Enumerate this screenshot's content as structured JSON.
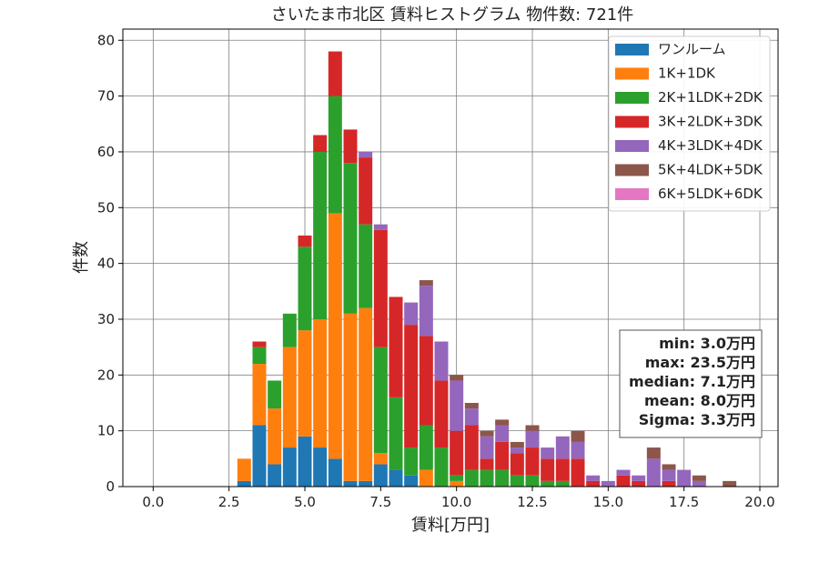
{
  "chart_data": {
    "type": "bar",
    "stacked": true,
    "title": "さいたま市北区 賃料ヒストグラム 物件数: 721件",
    "xlabel": "賃料[万円]",
    "ylabel": "件数",
    "xlim": [
      -1.0,
      20.6
    ],
    "ylim": [
      0,
      82
    ],
    "xticks": [
      0.0,
      2.5,
      5.0,
      7.5,
      10.0,
      12.5,
      15.0,
      17.5,
      20.0
    ],
    "xtick_labels": [
      "0.0",
      "2.5",
      "5.0",
      "7.5",
      "10.0",
      "12.5",
      "15.0",
      "17.5",
      "20.0"
    ],
    "yticks": [
      0,
      10,
      20,
      30,
      40,
      50,
      60,
      70,
      80
    ],
    "ytick_labels": [
      "0",
      "10",
      "20",
      "30",
      "40",
      "50",
      "60",
      "70",
      "80"
    ],
    "grid": true,
    "legend_position": "top-right",
    "bin_width": 0.5,
    "bin_starts": [
      3.0,
      3.5,
      4.0,
      4.5,
      5.0,
      5.5,
      6.0,
      6.5,
      7.0,
      7.5,
      8.0,
      8.5,
      9.0,
      9.5,
      10.0,
      10.5,
      11.0,
      11.5,
      12.0,
      12.5,
      13.0,
      13.5,
      14.0,
      14.5,
      15.0,
      15.5,
      16.0,
      16.5,
      17.0,
      17.5,
      18.0,
      18.5,
      19.0,
      19.5,
      20.0
    ],
    "series": [
      {
        "name": "ワンルーム",
        "color": "#1f77b4",
        "values": [
          1,
          11,
          4,
          7,
          9,
          7,
          5,
          1,
          1,
          4,
          3,
          2,
          0,
          0,
          0,
          0,
          0,
          0,
          0,
          0,
          0,
          0,
          0,
          0,
          0,
          0,
          0,
          0,
          0,
          0,
          0,
          0,
          0,
          0,
          0
        ]
      },
      {
        "name": "1K+1DK",
        "color": "#ff7f0e",
        "values": [
          4,
          11,
          10,
          18,
          19,
          23,
          44,
          30,
          31,
          2,
          0,
          0,
          3,
          0,
          1,
          0,
          0,
          0,
          0,
          0,
          0,
          0,
          0,
          0,
          0,
          0,
          0,
          0,
          0,
          0,
          0,
          0,
          0,
          0,
          0
        ]
      },
      {
        "name": "2K+1LDK+2DK",
        "color": "#2ca02c",
        "values": [
          0,
          3,
          5,
          6,
          15,
          30,
          21,
          27,
          15,
          19,
          13,
          5,
          8,
          7,
          1,
          3,
          3,
          3,
          2,
          2,
          1,
          1,
          0,
          0,
          0,
          0,
          0,
          0,
          0,
          0,
          0,
          0,
          0,
          0,
          0
        ]
      },
      {
        "name": "3K+2LDK+3DK",
        "color": "#d62728",
        "values": [
          0,
          1,
          0,
          0,
          2,
          3,
          8,
          6,
          12,
          21,
          18,
          22,
          16,
          12,
          8,
          8,
          2,
          5,
          4,
          5,
          4,
          4,
          5,
          1,
          0,
          2,
          1,
          0,
          1,
          0,
          0,
          0,
          0,
          0,
          0
        ]
      },
      {
        "name": "4K+3LDK+4DK",
        "color": "#9467bd",
        "values": [
          0,
          0,
          0,
          0,
          0,
          0,
          0,
          0,
          1,
          1,
          0,
          4,
          9,
          7,
          9,
          3,
          4,
          3,
          1,
          3,
          2,
          4,
          3,
          1,
          1,
          1,
          1,
          5,
          2,
          3,
          1,
          0,
          0,
          0,
          0
        ]
      },
      {
        "name": "5K+4LDK+5DK",
        "color": "#8c564b",
        "values": [
          0,
          0,
          0,
          0,
          0,
          0,
          0,
          0,
          0,
          0,
          0,
          0,
          1,
          0,
          1,
          1,
          1,
          1,
          1,
          1,
          0,
          0,
          2,
          0,
          0,
          0,
          0,
          2,
          1,
          0,
          1,
          0,
          1,
          0,
          0
        ]
      },
      {
        "name": "6K+5LDK+6DK",
        "color": "#e377c2",
        "values": [
          0,
          0,
          0,
          0,
          0,
          0,
          0,
          0,
          0,
          0,
          0,
          0,
          0,
          0,
          0,
          0,
          0,
          0,
          0,
          0,
          0,
          0,
          0,
          0,
          0,
          0,
          0,
          0,
          0,
          0,
          0,
          0,
          0,
          0,
          0
        ]
      }
    ],
    "stats": [
      "min: 3.0万円",
      "max: 23.5万円",
      "median: 7.1万円",
      "mean: 8.0万円",
      "Sigma: 3.3万円"
    ]
  }
}
